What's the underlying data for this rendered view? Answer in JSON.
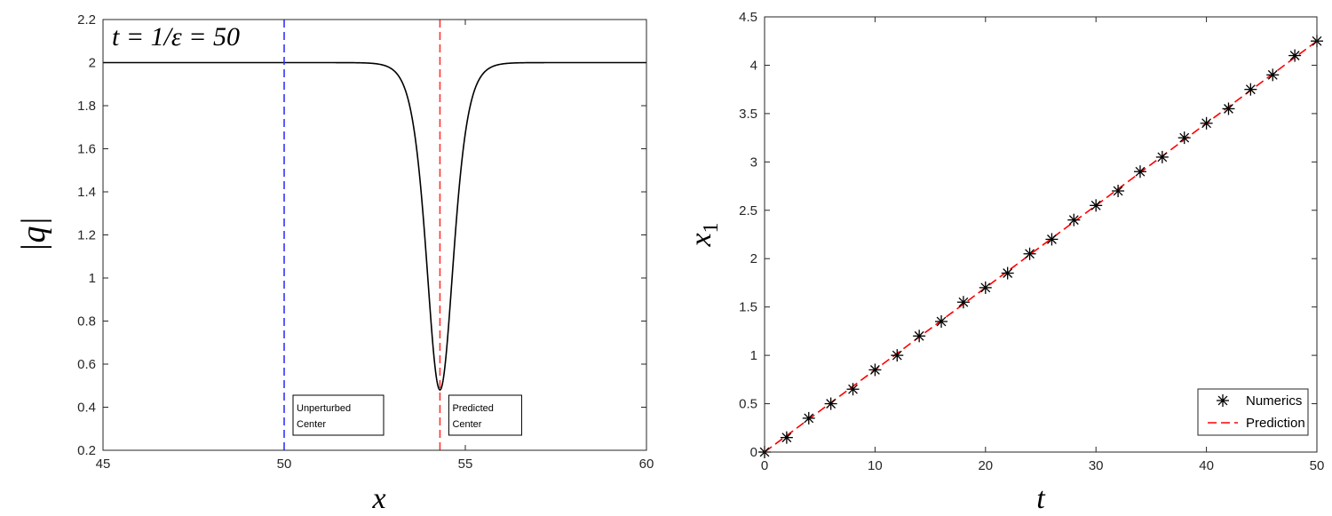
{
  "chart_data": [
    {
      "type": "line",
      "title": "t = 1/ε = 50",
      "xlabel": "x",
      "ylabel": "|q|",
      "xlim": [
        45,
        60
      ],
      "ylim": [
        0.2,
        2.2
      ],
      "xticks": [
        "45",
        "50",
        "55",
        "60"
      ],
      "yticks": [
        "0.2",
        "0.4",
        "0.6",
        "0.8",
        "1",
        "1.2",
        "1.4",
        "1.6",
        "1.8",
        "2",
        "2.2"
      ],
      "profile": {
        "background": 2.0,
        "center": 54.3,
        "minimum": 0.48,
        "half_width": 0.5
      },
      "vlines": [
        {
          "x": 50,
          "color": "#3333ff",
          "annotation": [
            "Unperturbed",
            "Center"
          ]
        },
        {
          "x": 54.3,
          "color": "#ff3333",
          "annotation": [
            "Predicted",
            "Center"
          ]
        }
      ]
    },
    {
      "type": "scatter",
      "xlabel": "t",
      "ylabel": "x1",
      "xlim": [
        0,
        50
      ],
      "ylim": [
        0,
        4.5
      ],
      "xticks": [
        "0",
        "10",
        "20",
        "30",
        "40",
        "50"
      ],
      "yticks": [
        "0",
        "0.5",
        "1",
        "1.5",
        "2",
        "2.5",
        "3",
        "3.5",
        "4",
        "4.5"
      ],
      "series": [
        {
          "name": "Numerics",
          "marker": "asterisk",
          "color": "#000000",
          "x": [
            0,
            2,
            4,
            6,
            8,
            10,
            12,
            14,
            16,
            18,
            20,
            22,
            24,
            26,
            28,
            30,
            32,
            34,
            36,
            38,
            40,
            42,
            44,
            46,
            48,
            50
          ],
          "y": [
            0,
            0.15,
            0.35,
            0.5,
            0.65,
            0.85,
            1.0,
            1.2,
            1.35,
            1.55,
            1.7,
            1.85,
            2.05,
            2.2,
            2.4,
            2.55,
            2.7,
            2.9,
            3.05,
            3.25,
            3.4,
            3.55,
            3.75,
            3.9,
            4.1,
            4.25
          ]
        },
        {
          "name": "Prediction",
          "style": "dashed",
          "color": "#ff0000",
          "x": [
            0,
            50
          ],
          "y": [
            0,
            4.25
          ]
        }
      ],
      "legend": "bottom-right"
    }
  ]
}
